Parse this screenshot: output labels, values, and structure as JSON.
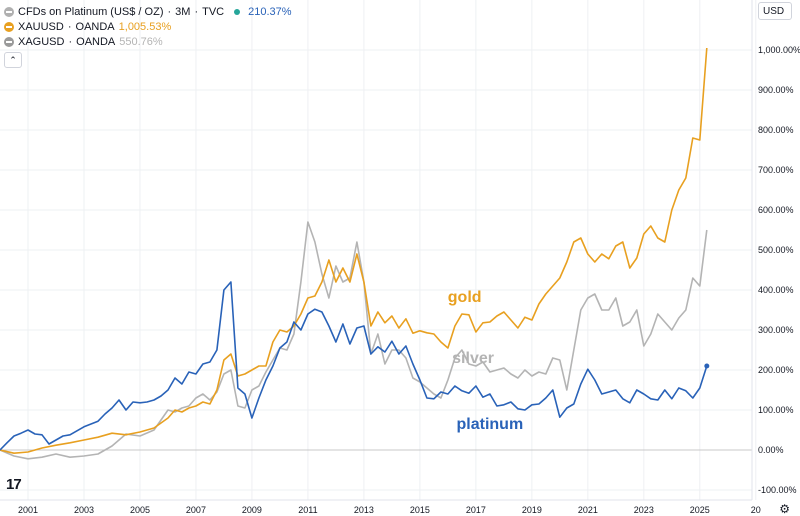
{
  "legend": {
    "main": {
      "name": "CFDs on Platinum (US$ / OZ)",
      "interval": "3M",
      "exchange": "TVC",
      "change": "210.37%",
      "status_color": "#26a69a"
    },
    "series": [
      {
        "symbol": "XAUUSD",
        "source": "OANDA",
        "value": "1,005.53%"
      },
      {
        "symbol": "XAGUSD",
        "source": "OANDA",
        "value": "550.76%"
      }
    ],
    "separator": "·"
  },
  "toolbar": {
    "currency": "USD",
    "collapse_icon": "chevron-up-icon",
    "settings_icon": "gear-icon"
  },
  "logo": {
    "text": "17"
  },
  "chart_data": {
    "type": "line",
    "x_labels": [
      "2001",
      "2003",
      "2005",
      "2007",
      "2009",
      "2011",
      "2013",
      "2015",
      "2017",
      "2019",
      "2021",
      "2023",
      "2025",
      "20"
    ],
    "y_labels": [
      "1,000.00%",
      "900.00%",
      "800.00%",
      "700.00%",
      "600.00%",
      "500.00%",
      "400.00%",
      "300.00%",
      "200.00%",
      "100.00%",
      "0.00%",
      "-100.00%"
    ],
    "ylim": [
      -100,
      1000
    ],
    "xlim": [
      2000.0,
      2025.9
    ],
    "grid": true,
    "annotations": [
      {
        "text": "gold",
        "x": 2016.6,
        "y": 370,
        "series": "gold"
      },
      {
        "text": "silver",
        "x": 2016.9,
        "y": 218,
        "series": "silver"
      },
      {
        "text": "platinum",
        "x": 2017.5,
        "y": 52,
        "series": "platinum"
      }
    ],
    "series": [
      {
        "name": "platinum",
        "color": "#2962b8",
        "x": [
          2000.0,
          2000.25,
          2000.5,
          2000.75,
          2001.0,
          2001.25,
          2001.5,
          2001.75,
          2002.0,
          2002.25,
          2002.5,
          2002.75,
          2003.0,
          2003.25,
          2003.5,
          2003.75,
          2004.0,
          2004.25,
          2004.5,
          2004.75,
          2005.0,
          2005.25,
          2005.5,
          2005.75,
          2006.0,
          2006.25,
          2006.5,
          2006.75,
          2007.0,
          2007.25,
          2007.5,
          2007.75,
          2008.0,
          2008.25,
          2008.5,
          2008.75,
          2009.0,
          2009.25,
          2009.5,
          2009.75,
          2010.0,
          2010.25,
          2010.5,
          2010.75,
          2011.0,
          2011.25,
          2011.5,
          2011.75,
          2012.0,
          2012.25,
          2012.5,
          2012.75,
          2013.0,
          2013.25,
          2013.5,
          2013.75,
          2014.0,
          2014.25,
          2014.5,
          2014.75,
          2015.0,
          2015.25,
          2015.5,
          2015.75,
          2016.0,
          2016.25,
          2016.5,
          2016.75,
          2017.0,
          2017.25,
          2017.5,
          2017.75,
          2018.0,
          2018.25,
          2018.5,
          2018.75,
          2019.0,
          2019.25,
          2019.5,
          2019.75,
          2020.0,
          2020.25,
          2020.5,
          2020.75,
          2021.0,
          2021.25,
          2021.5,
          2021.75,
          2022.0,
          2022.25,
          2022.5,
          2022.75,
          2023.0,
          2023.25,
          2023.5,
          2023.75,
          2024.0,
          2024.25,
          2024.5,
          2024.75,
          2025.0,
          2025.25
        ],
        "values": [
          0,
          18,
          35,
          42,
          50,
          40,
          38,
          15,
          25,
          35,
          38,
          48,
          58,
          65,
          72,
          90,
          105,
          125,
          100,
          120,
          118,
          120,
          125,
          135,
          150,
          180,
          165,
          195,
          190,
          215,
          220,
          250,
          400,
          420,
          155,
          140,
          80,
          130,
          175,
          210,
          255,
          270,
          320,
          300,
          340,
          352,
          345,
          310,
          270,
          315,
          265,
          305,
          310,
          240,
          258,
          245,
          272,
          240,
          260,
          215,
          175,
          130,
          128,
          145,
          140,
          160,
          148,
          142,
          160,
          132,
          140,
          110,
          113,
          120,
          103,
          100,
          113,
          115,
          130,
          150,
          82,
          105,
          115,
          165,
          202,
          175,
          140,
          145,
          150,
          128,
          118,
          150,
          140,
          128,
          125,
          150,
          128,
          155,
          148,
          130,
          155,
          210
        ]
      },
      {
        "name": "gold",
        "color": "#e8a020",
        "x": [
          2000.0,
          2000.5,
          2001.0,
          2001.5,
          2002.0,
          2002.5,
          2003.0,
          2003.5,
          2004.0,
          2004.5,
          2005.0,
          2005.5,
          2006.0,
          2006.25,
          2006.5,
          2006.75,
          2007.0,
          2007.25,
          2007.5,
          2007.75,
          2008.0,
          2008.25,
          2008.5,
          2008.75,
          2009.0,
          2009.25,
          2009.5,
          2009.75,
          2010.0,
          2010.25,
          2010.5,
          2010.75,
          2011.0,
          2011.25,
          2011.5,
          2011.75,
          2012.0,
          2012.25,
          2012.5,
          2012.75,
          2013.0,
          2013.25,
          2013.5,
          2013.75,
          2014.0,
          2014.25,
          2014.5,
          2014.75,
          2015.0,
          2015.25,
          2015.5,
          2015.75,
          2016.0,
          2016.25,
          2016.5,
          2016.75,
          2017.0,
          2017.25,
          2017.5,
          2017.75,
          2018.0,
          2018.25,
          2018.5,
          2018.75,
          2019.0,
          2019.25,
          2019.5,
          2019.75,
          2020.0,
          2020.25,
          2020.5,
          2020.75,
          2021.0,
          2021.25,
          2021.5,
          2021.75,
          2022.0,
          2022.25,
          2022.5,
          2022.75,
          2023.0,
          2023.25,
          2023.5,
          2023.75,
          2024.0,
          2024.25,
          2024.5,
          2024.75,
          2025.0,
          2025.25
        ],
        "values": [
          0,
          -8,
          -5,
          5,
          12,
          18,
          25,
          32,
          42,
          38,
          45,
          55,
          80,
          100,
          95,
          105,
          110,
          120,
          115,
          150,
          225,
          240,
          185,
          190,
          200,
          210,
          210,
          270,
          300,
          295,
          310,
          340,
          380,
          385,
          420,
          475,
          420,
          455,
          420,
          490,
          420,
          310,
          345,
          318,
          335,
          305,
          328,
          292,
          298,
          293,
          290,
          270,
          255,
          310,
          340,
          338,
          295,
          318,
          320,
          335,
          345,
          325,
          305,
          332,
          325,
          365,
          390,
          410,
          430,
          470,
          520,
          530,
          490,
          470,
          490,
          478,
          510,
          520,
          455,
          480,
          540,
          560,
          530,
          520,
          600,
          650,
          680,
          780,
          775,
          1005
        ]
      },
      {
        "name": "silver",
        "color": "#b4b4b4",
        "x": [
          2000.0,
          2000.5,
          2001.0,
          2001.5,
          2002.0,
          2002.5,
          2003.0,
          2003.5,
          2004.0,
          2004.5,
          2005.0,
          2005.5,
          2006.0,
          2006.25,
          2006.5,
          2006.75,
          2007.0,
          2007.25,
          2007.5,
          2007.75,
          2008.0,
          2008.25,
          2008.5,
          2008.75,
          2009.0,
          2009.25,
          2009.5,
          2009.75,
          2010.0,
          2010.25,
          2010.5,
          2010.75,
          2011.0,
          2011.25,
          2011.5,
          2011.75,
          2012.0,
          2012.25,
          2012.5,
          2012.75,
          2013.0,
          2013.25,
          2013.5,
          2013.75,
          2014.0,
          2014.25,
          2014.5,
          2014.75,
          2015.0,
          2015.25,
          2015.5,
          2015.75,
          2016.0,
          2016.25,
          2016.5,
          2016.75,
          2017.0,
          2017.25,
          2017.5,
          2017.75,
          2018.0,
          2018.25,
          2018.5,
          2018.75,
          2019.0,
          2019.25,
          2019.5,
          2019.75,
          2020.0,
          2020.25,
          2020.5,
          2020.75,
          2021.0,
          2021.25,
          2021.5,
          2021.75,
          2022.0,
          2022.25,
          2022.5,
          2022.75,
          2023.0,
          2023.25,
          2023.5,
          2023.75,
          2024.0,
          2024.25,
          2024.5,
          2024.75,
          2025.0,
          2025.25
        ],
        "values": [
          0,
          -15,
          -22,
          -18,
          -10,
          -18,
          -15,
          -10,
          10,
          40,
          35,
          50,
          100,
          95,
          105,
          110,
          130,
          140,
          125,
          145,
          190,
          200,
          110,
          105,
          150,
          160,
          195,
          225,
          255,
          250,
          290,
          420,
          570,
          520,
          440,
          380,
          460,
          420,
          430,
          520,
          420,
          240,
          290,
          215,
          250,
          250,
          230,
          180,
          170,
          155,
          140,
          130,
          175,
          230,
          250,
          215,
          210,
          220,
          195,
          200,
          205,
          190,
          180,
          200,
          185,
          195,
          190,
          230,
          225,
          150,
          250,
          350,
          380,
          390,
          350,
          350,
          380,
          310,
          320,
          350,
          260,
          290,
          340,
          320,
          300,
          330,
          350,
          430,
          410,
          550
        ]
      }
    ]
  }
}
